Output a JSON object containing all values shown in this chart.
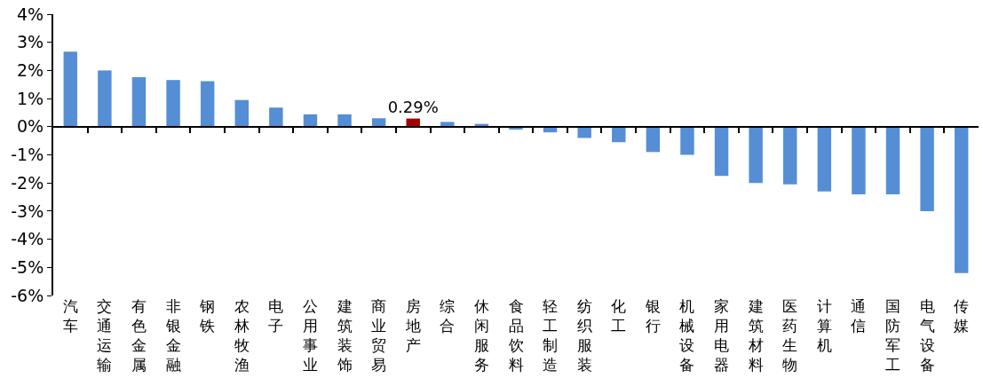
{
  "chart_data": {
    "type": "bar",
    "categories": [
      "汽车",
      "交通运输",
      "有色金属",
      "非银金融",
      "钢铁",
      "农林牧渔",
      "电子",
      "公用事业",
      "建筑装饰",
      "商业贸易",
      "房地产",
      "综合",
      "休闲服务",
      "食品饮料",
      "轻工制造",
      "纺织服装",
      "化工",
      "银行",
      "机械设备",
      "家用电器",
      "建筑材料",
      "医药生物",
      "计算机",
      "通信",
      "国防军工",
      "电气设备",
      "传媒"
    ],
    "values": [
      2.67,
      2.0,
      1.76,
      1.66,
      1.62,
      0.95,
      0.68,
      0.44,
      0.44,
      0.3,
      0.29,
      0.17,
      0.1,
      -0.1,
      -0.2,
      -0.4,
      -0.55,
      -0.9,
      -1.0,
      -1.75,
      -2.0,
      -2.05,
      -2.3,
      -2.4,
      -2.4,
      -3.0,
      -5.2
    ],
    "colors": [
      "#558ed5",
      "#558ed5",
      "#558ed5",
      "#558ed5",
      "#558ed5",
      "#558ed5",
      "#558ed5",
      "#558ed5",
      "#558ed5",
      "#558ed5",
      "#a50000",
      "#558ed5",
      "#558ed5",
      "#558ed5",
      "#558ed5",
      "#558ed5",
      "#558ed5",
      "#558ed5",
      "#558ed5",
      "#558ed5",
      "#558ed5",
      "#558ed5",
      "#558ed5",
      "#558ed5",
      "#558ed5",
      "#558ed5",
      "#558ed5"
    ],
    "value_labels": [
      null,
      null,
      null,
      null,
      null,
      null,
      null,
      null,
      null,
      null,
      "0.29%",
      null,
      null,
      null,
      null,
      null,
      null,
      null,
      null,
      null,
      null,
      null,
      null,
      null,
      null,
      null,
      null
    ],
    "ylim": [
      -6,
      4
    ],
    "yticks": [
      {
        "value": 4,
        "label": "4%"
      },
      {
        "value": 3,
        "label": "3%"
      },
      {
        "value": 2,
        "label": "2%"
      },
      {
        "value": 1,
        "label": "1%"
      },
      {
        "value": 0,
        "label": "0%"
      },
      {
        "value": -1,
        "label": "-1%"
      },
      {
        "value": -2,
        "label": "-2%"
      },
      {
        "value": -3,
        "label": "-3%"
      },
      {
        "value": -4,
        "label": "-4%"
      },
      {
        "value": -5,
        "label": "-5%"
      },
      {
        "value": -6,
        "label": "-6%"
      }
    ],
    "legend": false
  }
}
